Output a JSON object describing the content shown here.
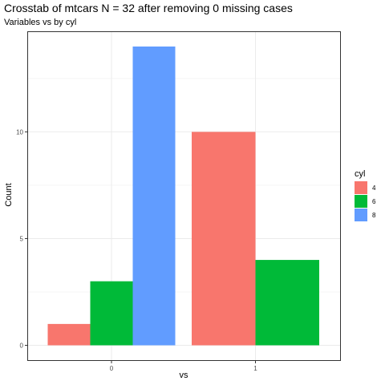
{
  "chart_data": {
    "type": "bar",
    "title": "Crosstab of mtcars N = 32 after removing 0 missing cases",
    "subtitle": "Variables vs by cyl",
    "xlabel": "vs",
    "ylabel": "Count",
    "categories": [
      "0",
      "1"
    ],
    "series": [
      {
        "name": "4",
        "values": [
          1,
          10
        ],
        "color": "#F8766D"
      },
      {
        "name": "6",
        "values": [
          3,
          4
        ],
        "color": "#00BA38"
      },
      {
        "name": "8",
        "values": [
          14,
          0
        ],
        "color": "#619CFF"
      }
    ],
    "ylim": [
      0,
      14.7
    ],
    "yticks": [
      0,
      5,
      10
    ],
    "legend_title": "cyl",
    "legend_position": "right",
    "grid": true,
    "panel_border_color": "#333333",
    "grid_color": "#ebebeb"
  }
}
